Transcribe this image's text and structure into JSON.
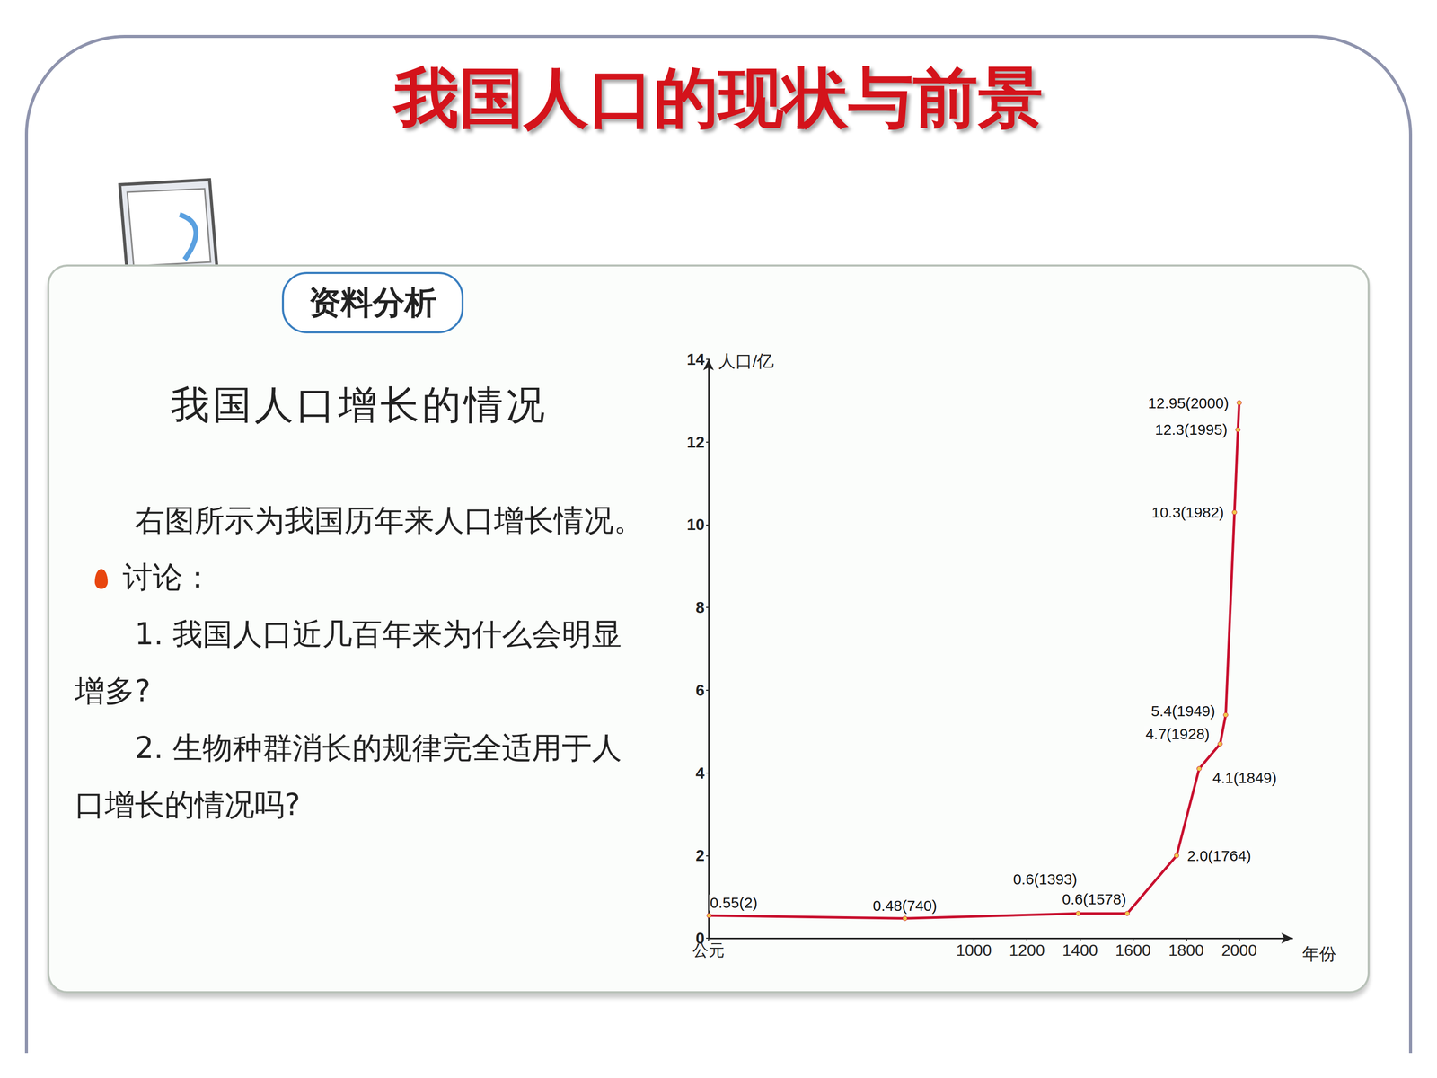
{
  "page": {
    "title": "我国人口的现状与前景",
    "badge": "资料分析",
    "heading": "我国人口增长的情况",
    "paragraph": "右图所示为我国历年来人口增长情况。",
    "discussion_label": "讨论：",
    "questions": [
      "1. 我国人口近几百年来为什么会明显增多?",
      "2. 生物种群消长的规律完全适用于人口增长的情况吗?"
    ]
  },
  "chart_data": {
    "type": "line",
    "x": [
      2,
      740,
      1393,
      1578,
      1764,
      1849,
      1928,
      1949,
      1982,
      1995,
      2000
    ],
    "values": [
      0.55,
      0.48,
      0.6,
      0.6,
      2.0,
      4.1,
      4.7,
      5.4,
      10.3,
      12.3,
      12.95
    ],
    "value_labels": [
      "0.55(2)",
      "0.48(740)",
      "0.6(1393)",
      "0.6(1578)",
      "2.0(1764)",
      "4.1(1849)",
      "4.7(1928)",
      "5.4(1949)",
      "10.3(1982)",
      "12.3(1995)",
      "12.95(2000)"
    ],
    "color": "#c8102e",
    "marker": "circle",
    "data_labels": true,
    "grid": false,
    "xlabel": "年份",
    "ylabel": "人口/亿",
    "xlim": [
      0,
      2200
    ],
    "xticks": [
      {
        "value": 0,
        "label": "公元"
      },
      1000,
      1200,
      1400,
      1600,
      1800,
      2000
    ],
    "ylim": [
      0,
      14
    ],
    "yticks": [
      0,
      2,
      4,
      6,
      8,
      10,
      12,
      14
    ]
  }
}
